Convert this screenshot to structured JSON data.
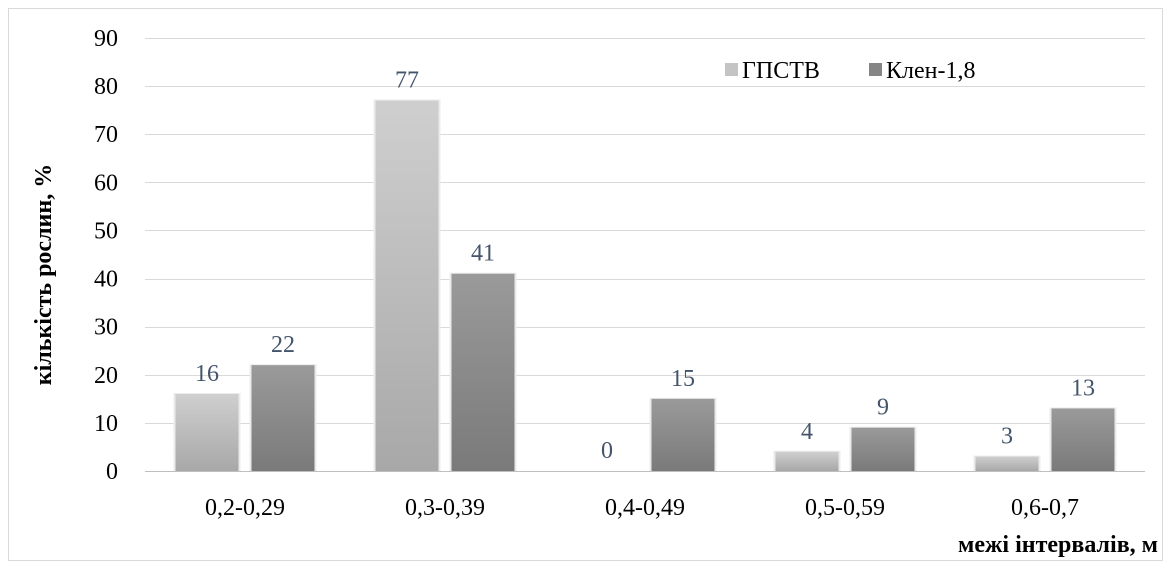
{
  "chart_data": {
    "type": "bar",
    "categories": [
      "0,2-0,29",
      "0,3-0,39",
      "0,4-0,49",
      "0,5-0,59",
      "0,6-0,7"
    ],
    "series": [
      {
        "name": "ГПСТВ",
        "values": [
          16,
          77,
          0,
          4,
          3
        ],
        "color": "#bfbfbf",
        "color_dark": "#a6a6a6"
      },
      {
        "name": "Клен-1,8",
        "values": [
          22,
          41,
          15,
          9,
          13
        ],
        "color": "#8c8c8c",
        "color_dark": "#737373"
      }
    ],
    "title": "",
    "xlabel": "межі інтервалів, м",
    "ylabel": "кількість рослин, %",
    "ylim": [
      0,
      90
    ],
    "yticks": [
      0,
      10,
      20,
      30,
      40,
      50,
      60,
      70,
      80,
      90
    ],
    "grid": true,
    "legend": "top-right",
    "data_labels": true
  }
}
